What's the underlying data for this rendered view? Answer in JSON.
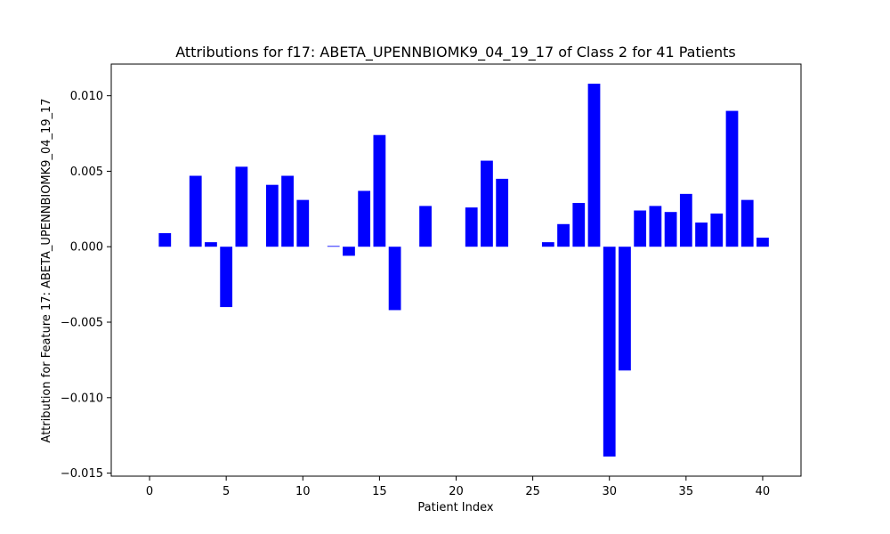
{
  "chart_data": {
    "type": "bar",
    "title": "Attributions for f17: ABETA_UPENNBIOMK9_04_19_17 of Class 2 for 41 Patients",
    "xlabel": "Patient Index",
    "ylabel": "Attribution for Feature 17: ABETA_UPENNBIOMK9_04_19_17",
    "x": [
      0,
      1,
      2,
      3,
      4,
      5,
      6,
      7,
      8,
      9,
      10,
      11,
      12,
      13,
      14,
      15,
      16,
      17,
      18,
      19,
      20,
      21,
      22,
      23,
      24,
      25,
      26,
      27,
      28,
      29,
      30,
      31,
      32,
      33,
      34,
      35,
      36,
      37,
      38,
      39,
      40
    ],
    "values": [
      0.0,
      0.0009,
      0.0,
      0.0047,
      0.0003,
      -0.004,
      0.0053,
      0.0,
      0.0041,
      0.0047,
      0.0031,
      0.0,
      5e-05,
      -0.0006,
      0.0037,
      0.0074,
      -0.0042,
      0.0,
      0.0027,
      0.0,
      0.0,
      0.0026,
      0.0057,
      0.0045,
      0.0,
      0.0,
      0.0003,
      0.0015,
      0.0029,
      0.0108,
      -0.0139,
      -0.0082,
      0.0024,
      0.0027,
      0.0023,
      0.0035,
      0.0016,
      0.0022,
      0.009,
      0.0031,
      0.0006
    ],
    "xlim": [
      -2.5,
      42.5
    ],
    "ylim": [
      -0.0152,
      0.0121
    ],
    "xticks": [
      0,
      5,
      10,
      15,
      20,
      25,
      30,
      35,
      40
    ],
    "yticks": [
      -0.015,
      -0.01,
      -0.005,
      0.0,
      0.005,
      0.01
    ],
    "ytick_labels": [
      "−0.015",
      "−0.010",
      "−0.005",
      "0.000",
      "0.005",
      "0.010"
    ],
    "bar_color": "#0000ff",
    "grid": false,
    "legend": "none"
  }
}
